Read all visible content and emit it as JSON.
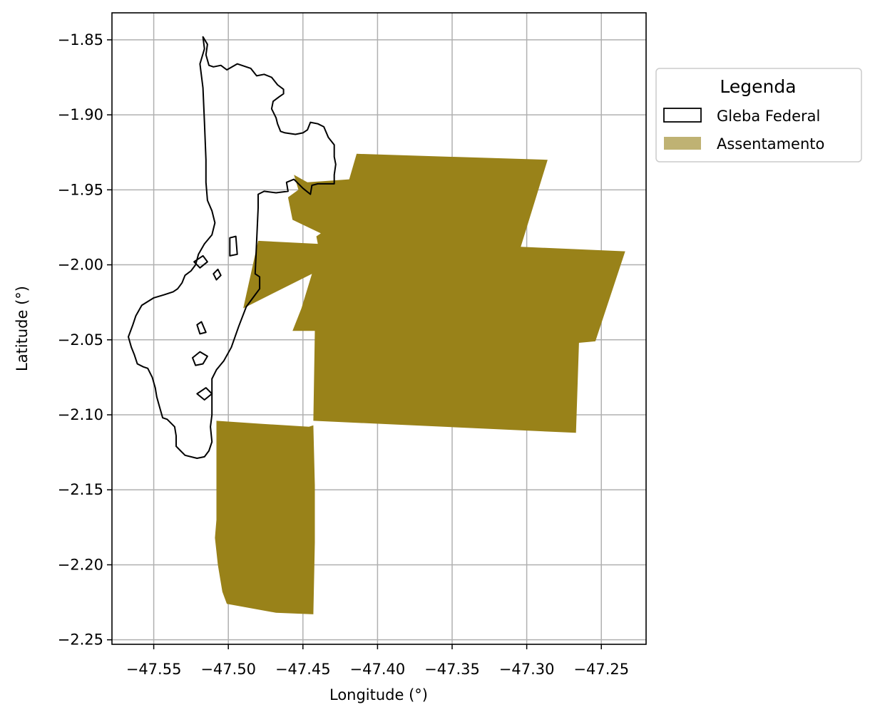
{
  "chart_data": {
    "type": "map",
    "xlabel": "Longitude (°)",
    "ylabel": "Latitude (°)",
    "xlim": [
      -47.578,
      -47.22
    ],
    "ylim": [
      -2.253,
      -1.832
    ],
    "grid": true,
    "x_ticks": [
      {
        "value": -47.55,
        "label": "−47.55"
      },
      {
        "value": -47.5,
        "label": "−47.50"
      },
      {
        "value": -47.45,
        "label": "−47.45"
      },
      {
        "value": -47.4,
        "label": "−47.40"
      },
      {
        "value": -47.35,
        "label": "−47.35"
      },
      {
        "value": -47.3,
        "label": "−47.30"
      },
      {
        "value": -47.25,
        "label": "−47.25"
      }
    ],
    "y_ticks": [
      {
        "value": -1.85,
        "label": "−1.85"
      },
      {
        "value": -1.9,
        "label": "−1.90"
      },
      {
        "value": -1.95,
        "label": "−1.95"
      },
      {
        "value": -2.0,
        "label": "−2.00"
      },
      {
        "value": -2.05,
        "label": "−2.05"
      },
      {
        "value": -2.1,
        "label": "−2.10"
      },
      {
        "value": -2.15,
        "label": "−2.15"
      },
      {
        "value": -2.2,
        "label": "−2.20"
      },
      {
        "value": -2.25,
        "label": "−2.25"
      }
    ],
    "legend": {
      "title": "Legenda",
      "placement": "outside-right-top",
      "entries": [
        {
          "key": "gleba",
          "label": "Gleba Federal"
        },
        {
          "key": "assentamento",
          "label": "Assentamento"
        }
      ]
    },
    "layers": {
      "assentamento": {
        "label": "Assentamento",
        "fill_color": "#998219",
        "legend_color": "#bfb273",
        "polygons": [
          [
            [
              -47.414,
              -1.926
            ],
            [
              -47.286,
              -1.93
            ],
            [
              -47.304,
              -1.988
            ],
            [
              -47.234,
              -1.991
            ],
            [
              -47.254,
              -2.051
            ],
            [
              -47.265,
              -2.052
            ],
            [
              -47.267,
              -2.112
            ],
            [
              -47.443,
              -2.104
            ],
            [
              -47.442,
              -2.044
            ],
            [
              -47.457,
              -2.044
            ],
            [
              -47.451,
              -2.029
            ],
            [
              -47.444,
              -2.006
            ],
            [
              -47.49,
              -2.029
            ],
            [
              -47.48,
              -1.984
            ],
            [
              -47.44,
              -1.986
            ],
            [
              -47.441,
              -1.981
            ],
            [
              -47.438,
              -1.979
            ],
            [
              -47.457,
              -1.97
            ],
            [
              -47.46,
              -1.955
            ],
            [
              -47.453,
              -1.95
            ],
            [
              -47.456,
              -1.94
            ],
            [
              -47.447,
              -1.945
            ],
            [
              -47.419,
              -1.943
            ]
          ],
          [
            [
              -47.508,
              -2.104
            ],
            [
              -47.478,
              -2.106
            ],
            [
              -47.446,
              -2.108
            ],
            [
              -47.443,
              -2.107
            ],
            [
              -47.442,
              -2.147
            ],
            [
              -47.442,
              -2.185
            ],
            [
              -47.443,
              -2.233
            ],
            [
              -47.468,
              -2.232
            ],
            [
              -47.501,
              -2.226
            ],
            [
              -47.504,
              -2.218
            ],
            [
              -47.507,
              -2.2
            ],
            [
              -47.509,
              -2.182
            ],
            [
              -47.508,
              -2.17
            ],
            [
              -47.508,
              -2.145
            ],
            [
              -47.508,
              -2.12
            ]
          ]
        ]
      },
      "gleba": {
        "label": "Gleba Federal",
        "stroke_color": "#000000",
        "polygons": [
          [
            [
              -47.517,
              -1.848
            ],
            [
              -47.514,
              -1.853
            ],
            [
              -47.515,
              -1.86
            ],
            [
              -47.513,
              -1.867
            ],
            [
              -47.51,
              -1.868
            ],
            [
              -47.505,
              -1.867
            ],
            [
              -47.501,
              -1.87
            ],
            [
              -47.494,
              -1.866
            ],
            [
              -47.488,
              -1.868
            ],
            [
              -47.485,
              -1.869
            ],
            [
              -47.481,
              -1.874
            ],
            [
              -47.476,
              -1.873
            ],
            [
              -47.471,
              -1.875
            ],
            [
              -47.467,
              -1.88
            ],
            [
              -47.463,
              -1.883
            ],
            [
              -47.463,
              -1.886
            ],
            [
              -47.466,
              -1.888
            ],
            [
              -47.47,
              -1.891
            ],
            [
              -47.471,
              -1.896
            ],
            [
              -47.468,
              -1.902
            ],
            [
              -47.467,
              -1.906
            ],
            [
              -47.465,
              -1.911
            ],
            [
              -47.462,
              -1.912
            ],
            [
              -47.455,
              -1.913
            ],
            [
              -47.45,
              -1.912
            ],
            [
              -47.447,
              -1.91
            ],
            [
              -47.445,
              -1.905
            ],
            [
              -47.44,
              -1.906
            ],
            [
              -47.436,
              -1.908
            ],
            [
              -47.433,
              -1.915
            ],
            [
              -47.429,
              -1.92
            ],
            [
              -47.429,
              -1.928
            ],
            [
              -47.428,
              -1.933
            ],
            [
              -47.429,
              -1.94
            ],
            [
              -47.429,
              -1.946
            ],
            [
              -47.44,
              -1.946
            ],
            [
              -47.444,
              -1.947
            ],
            [
              -47.445,
              -1.953
            ],
            [
              -47.45,
              -1.949
            ],
            [
              -47.456,
              -1.943
            ],
            [
              -47.461,
              -1.945
            ],
            [
              -47.46,
              -1.951
            ],
            [
              -47.468,
              -1.952
            ],
            [
              -47.476,
              -1.951
            ],
            [
              -47.48,
              -1.953
            ],
            [
              -47.48,
              -1.962
            ],
            [
              -47.482,
              -2.006
            ],
            [
              -47.479,
              -2.008
            ],
            [
              -47.479,
              -2.016
            ],
            [
              -47.482,
              -2.02
            ],
            [
              -47.488,
              -2.028
            ],
            [
              -47.493,
              -2.041
            ],
            [
              -47.498,
              -2.055
            ],
            [
              -47.503,
              -2.064
            ],
            [
              -47.508,
              -2.07
            ],
            [
              -47.511,
              -2.076
            ],
            [
              -47.511,
              -2.1
            ],
            [
              -47.512,
              -2.108
            ],
            [
              -47.511,
              -2.118
            ],
            [
              -47.513,
              -2.124
            ],
            [
              -47.516,
              -2.128
            ],
            [
              -47.521,
              -2.129
            ],
            [
              -47.529,
              -2.127
            ],
            [
              -47.532,
              -2.124
            ],
            [
              -47.535,
              -2.121
            ],
            [
              -47.535,
              -2.114
            ],
            [
              -47.536,
              -2.108
            ],
            [
              -47.541,
              -2.103
            ],
            [
              -47.544,
              -2.102
            ],
            [
              -47.546,
              -2.095
            ],
            [
              -47.548,
              -2.088
            ],
            [
              -47.549,
              -2.082
            ],
            [
              -47.551,
              -2.075
            ],
            [
              -47.554,
              -2.069
            ],
            [
              -47.557,
              -2.068
            ],
            [
              -47.561,
              -2.066
            ],
            [
              -47.563,
              -2.06
            ],
            [
              -47.565,
              -2.055
            ],
            [
              -47.567,
              -2.048
            ],
            [
              -47.564,
              -2.04
            ],
            [
              -47.562,
              -2.034
            ],
            [
              -47.558,
              -2.027
            ],
            [
              -47.55,
              -2.022
            ],
            [
              -47.543,
              -2.02
            ],
            [
              -47.537,
              -2.018
            ],
            [
              -47.534,
              -2.016
            ],
            [
              -47.531,
              -2.012
            ],
            [
              -47.529,
              -2.007
            ],
            [
              -47.525,
              -2.004
            ],
            [
              -47.522,
              -2.0
            ],
            [
              -47.52,
              -1.993
            ],
            [
              -47.516,
              -1.986
            ],
            [
              -47.511,
              -1.98
            ],
            [
              -47.509,
              -1.972
            ],
            [
              -47.511,
              -1.964
            ],
            [
              -47.514,
              -1.957
            ],
            [
              -47.515,
              -1.945
            ],
            [
              -47.515,
              -1.93
            ],
            [
              -47.516,
              -1.905
            ],
            [
              -47.517,
              -1.882
            ],
            [
              -47.519,
              -1.866
            ],
            [
              -47.516,
              -1.856
            ]
          ],
          [
            [
              -47.524,
              -2.062
            ],
            [
              -47.519,
              -2.058
            ],
            [
              -47.514,
              -2.061
            ],
            [
              -47.517,
              -2.066
            ],
            [
              -47.522,
              -2.067
            ]
          ],
          [
            [
              -47.521,
              -2.086
            ],
            [
              -47.515,
              -2.082
            ],
            [
              -47.511,
              -2.086
            ],
            [
              -47.516,
              -2.09
            ]
          ],
          [
            [
              -47.499,
              -1.982
            ],
            [
              -47.495,
              -1.981
            ],
            [
              -47.494,
              -1.993
            ],
            [
              -47.499,
              -1.994
            ]
          ],
          [
            [
              -47.523,
              -1.998
            ],
            [
              -47.517,
              -1.994
            ],
            [
              -47.514,
              -1.998
            ],
            [
              -47.519,
              -2.002
            ]
          ],
          [
            [
              -47.51,
              -2.006
            ],
            [
              -47.507,
              -2.003
            ],
            [
              -47.505,
              -2.007
            ],
            [
              -47.508,
              -2.01
            ]
          ],
          [
            [
              -47.521,
              -2.04
            ],
            [
              -47.518,
              -2.038
            ],
            [
              -47.515,
              -2.045
            ],
            [
              -47.519,
              -2.046
            ]
          ]
        ]
      }
    }
  }
}
